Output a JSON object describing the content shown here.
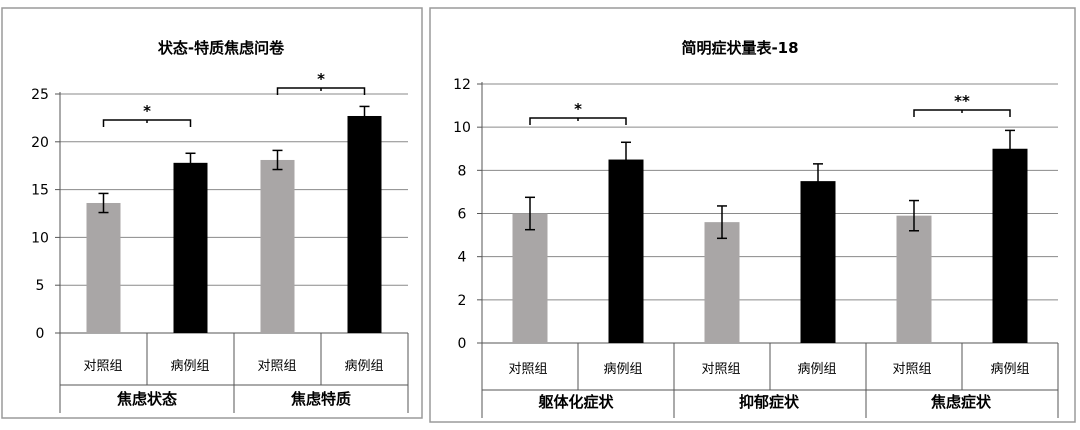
{
  "chart_data": [
    {
      "type": "bar",
      "title": "状态-特质焦虑问卷",
      "ylim": [
        0,
        25
      ],
      "yticks": [
        0,
        5,
        10,
        15,
        20,
        25
      ],
      "grid": true,
      "groups": [
        "焦虑状态",
        "焦虑特质"
      ],
      "categories": [
        "对照组",
        "病例组",
        "对照组",
        "病例组"
      ],
      "colors": [
        "#a9a6a6",
        "#000000",
        "#a9a6a6",
        "#000000"
      ],
      "values": [
        13.6,
        17.8,
        18.1,
        22.7
      ],
      "errors": [
        1.0,
        1.0,
        1.0,
        1.0
      ],
      "significance": [
        {
          "from": 0,
          "to": 1,
          "label": "*"
        },
        {
          "from": 2,
          "to": 3,
          "label": "*"
        }
      ]
    },
    {
      "type": "bar",
      "title": "简明症状量表-18",
      "ylim": [
        0,
        12
      ],
      "yticks": [
        0,
        2,
        4,
        6,
        8,
        10,
        12
      ],
      "grid": true,
      "groups": [
        "躯体化症状",
        "抑郁症状",
        "焦虑症状"
      ],
      "categories": [
        "对照组",
        "病例组",
        "对照组",
        "病例组",
        "对照组",
        "病例组"
      ],
      "colors": [
        "#a9a6a6",
        "#000000",
        "#a9a6a6",
        "#000000",
        "#a9a6a6",
        "#000000"
      ],
      "values": [
        6.0,
        8.5,
        5.6,
        7.5,
        5.9,
        9.0
      ],
      "errors": [
        0.75,
        0.8,
        0.75,
        0.8,
        0.7,
        0.85
      ],
      "significance": [
        {
          "from": 0,
          "to": 1,
          "label": "*"
        },
        {
          "from": 4,
          "to": 5,
          "label": "**"
        }
      ]
    }
  ]
}
